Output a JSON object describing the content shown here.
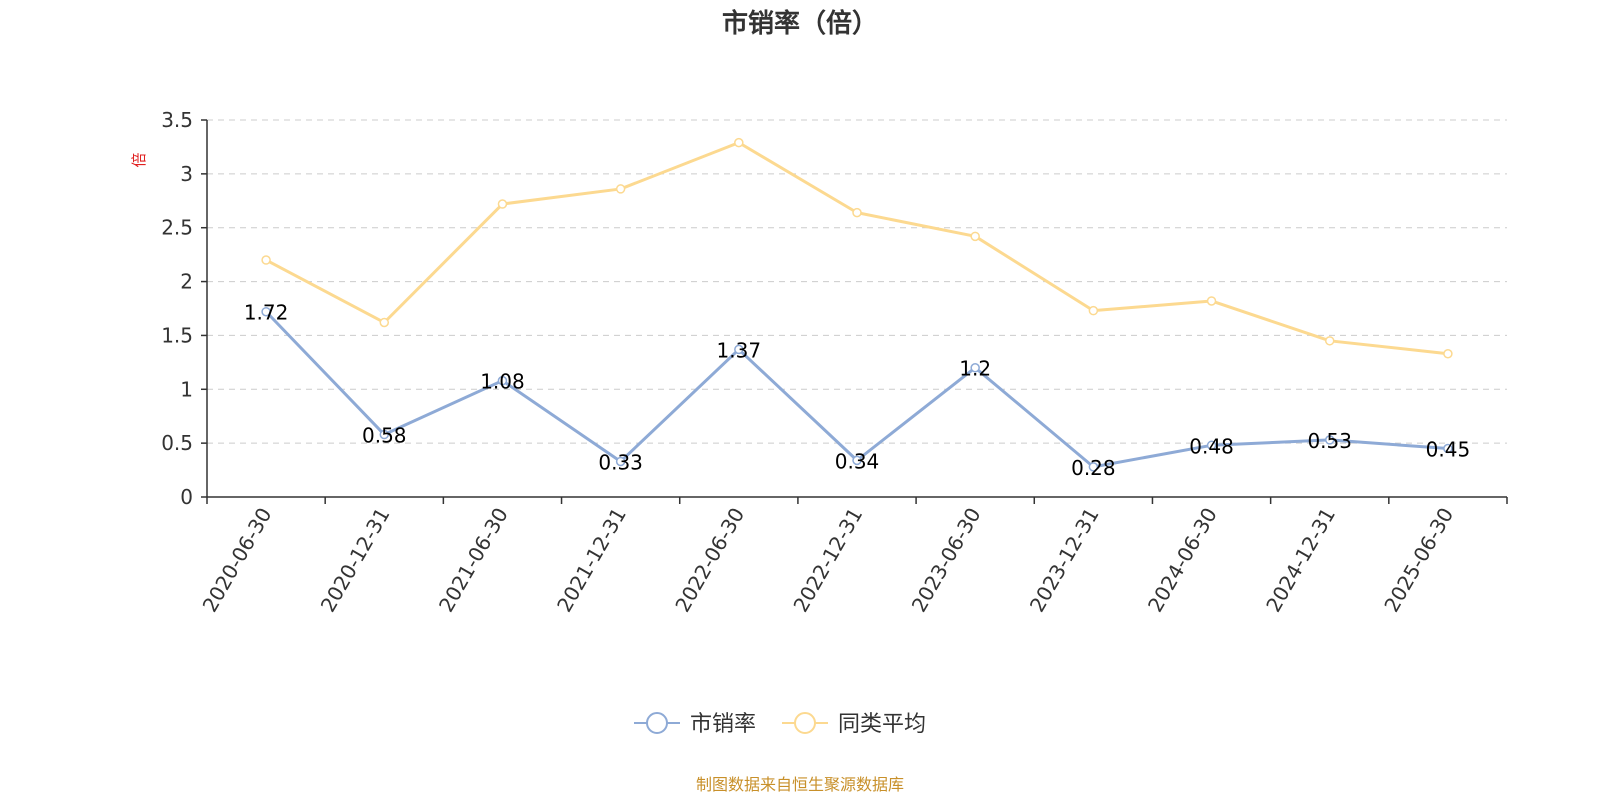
{
  "chart_data": {
    "type": "line",
    "title": "市销率（倍）",
    "ylabel": "倍",
    "xlabel": "",
    "ylim": [
      0,
      3.5
    ],
    "yticks": [
      0,
      0.5,
      1,
      1.5,
      2,
      2.5,
      3,
      3.5
    ],
    "ytick_labels": [
      "0",
      "0.5",
      "1",
      "1.5",
      "2",
      "2.5",
      "3",
      "3.5"
    ],
    "grid": true,
    "legend_position": "bottom-center",
    "categories": [
      "2020-06-30",
      "2020-12-31",
      "2021-06-30",
      "2021-12-31",
      "2022-06-30",
      "2022-12-31",
      "2023-06-30",
      "2023-12-31",
      "2024-06-30",
      "2024-12-31",
      "2025-06-30"
    ],
    "series": [
      {
        "name": "市销率",
        "color": "#8eaad6",
        "values": [
          1.72,
          0.58,
          1.08,
          0.33,
          1.37,
          0.34,
          1.2,
          0.28,
          0.48,
          0.53,
          0.45
        ],
        "labels": [
          "1.72",
          "0.58",
          "1.08",
          "0.33",
          "1.37",
          "0.34",
          "1.2",
          "0.28",
          "0.48",
          "0.53",
          "0.45"
        ],
        "show_labels": true
      },
      {
        "name": "同类平均",
        "color": "#fcd990",
        "values": [
          2.2,
          1.62,
          2.72,
          2.86,
          3.29,
          2.64,
          2.42,
          1.73,
          1.82,
          1.45,
          1.33
        ],
        "show_labels": false
      }
    ]
  },
  "source_note": "制图数据来自恒生聚源数据库"
}
